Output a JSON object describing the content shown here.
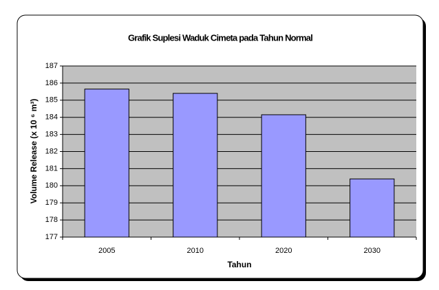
{
  "chart_data": {
    "type": "bar",
    "title": "Grafik Suplesi Waduk Cimeta pada Tahun Normal",
    "x_label": "Tahun",
    "y_label": "Volume Release (x 10 ⁶ m³)",
    "categories": [
      "2005",
      "2010",
      "2020",
      "2030"
    ],
    "values": [
      185.65,
      185.4,
      184.15,
      180.4
    ],
    "color": "#9999ff",
    "ylim": [
      177,
      187
    ],
    "yticks": [
      177,
      178,
      179,
      180,
      181,
      182,
      183,
      184,
      185,
      186,
      187
    ],
    "grid": true
  }
}
